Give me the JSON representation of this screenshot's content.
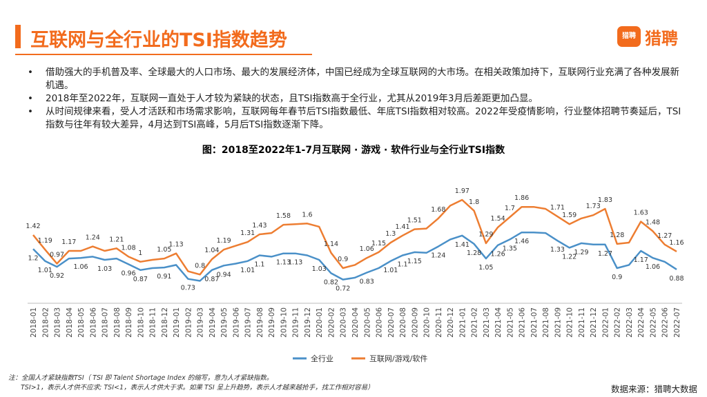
{
  "header": {
    "title": "互联网与全行业的TSI指数趋势",
    "logo_text": "猎聘"
  },
  "bullets": [
    "借助强大的手机普及率、全球最大的人口市场、最大的发展经济体，中国已经成为全球互联网的大市场。在相关政策加持下，互联网行业充满了各种发展新机遇。",
    "2018年至2022年，互联网一直处于人才较为紧缺的状态，且TSI指数高于全行业，尤其从2019年3月后差距更加凸显。",
    "从时间规律来看，受人才活跃和市场需求影响，互联网每年春节后TSI指数最低、年底TSI指数相对较高。2022年受疫情影响，行业整体招聘节奏延后，TSI指数与往年有较大差异，4月达到TSI高峰，5月后TSI指数逐渐下降。"
  ],
  "chart_data": {
    "type": "line",
    "title": "图：2018至2022年1-7月互联网 · 游戏 · 软件行业与全行业TSI指数",
    "categories": [
      "2018-01",
      "2018-02",
      "2018-03",
      "2018-04",
      "2018-05",
      "2018-06",
      "2018-07",
      "2018-08",
      "2018-09",
      "2018-10",
      "2018-11",
      "2018-12",
      "2019-01",
      "2019-02",
      "2019-03",
      "2019-04",
      "2019-05",
      "2019-06",
      "2019-07",
      "2019-08",
      "2019-09",
      "2019-10",
      "2019-11",
      "2019-12",
      "2020-01",
      "2020-02",
      "2020-03",
      "2020-04",
      "2020-05",
      "2020-06",
      "2020-07",
      "2020-08",
      "2020-09",
      "2020-10",
      "2020-11",
      "2020-12",
      "2021-01",
      "2021-02",
      "2021-03",
      "2021-04",
      "2021-05",
      "2021-06",
      "2021-07",
      "2021-08",
      "2021-09",
      "2021-10",
      "2021-11",
      "2021-12",
      "2022-01",
      "2022-02",
      "2022-03",
      "2022-04",
      "2022-05",
      "2022-06",
      "2022-07"
    ],
    "ylim": [
      0.5,
      2.1
    ],
    "series": [
      {
        "name": "全行业",
        "color": "#4a90c8",
        "values": [
          1.2,
          1.01,
          0.92,
          1.05,
          1.06,
          1.08,
          1.03,
          1.05,
          0.96,
          0.87,
          0.9,
          0.91,
          0.95,
          0.73,
          0.7,
          0.87,
          0.94,
          0.97,
          1.01,
          1.1,
          1.08,
          1.13,
          1.13,
          1.1,
          1.03,
          0.82,
          0.72,
          0.75,
          0.83,
          0.9,
          1.01,
          1.1,
          1.15,
          1.14,
          1.24,
          1.35,
          1.41,
          1.28,
          1.05,
          1.26,
          1.35,
          1.46,
          1.46,
          1.45,
          1.33,
          1.22,
          1.29,
          1.27,
          1.27,
          0.9,
          0.95,
          1.17,
          1.06,
          1,
          0.88
        ],
        "value_labels": [
          "1.2",
          "1.01",
          "0.92",
          null,
          "1.06",
          null,
          "1.03",
          null,
          "0.96",
          "0.87",
          null,
          "0.91",
          null,
          "0.73",
          null,
          "0.87",
          "0.94",
          null,
          "1.01",
          "1.1",
          null,
          "1.13",
          "1.13",
          null,
          "1.03",
          "0.82",
          "0.72",
          null,
          "0.83",
          null,
          "1.01",
          "1.1",
          "1.15",
          null,
          "1.24",
          null,
          "1.41",
          "1.28",
          "1.05",
          "1.26",
          "1.35",
          "1.46",
          null,
          null,
          "1.33",
          "1.22",
          "1.29",
          null,
          "1.27",
          "0.9",
          null,
          "1.17",
          "1.06",
          null,
          "0.88"
        ]
      },
      {
        "name": "互联网/游戏/软件",
        "color": "#ed7d31",
        "values": [
          1.42,
          1.19,
          0.97,
          1.17,
          1.17,
          1.24,
          1.17,
          1.21,
          1.08,
          1,
          1.03,
          1.05,
          1.13,
          0.85,
          0.8,
          1.04,
          1.19,
          1.25,
          1.31,
          1.43,
          1.45,
          1.58,
          1.59,
          1.6,
          1.55,
          1.14,
          0.9,
          0.95,
          1.06,
          1.15,
          1.3,
          1.41,
          1.51,
          1.52,
          1.68,
          1.88,
          1.97,
          1.8,
          1.29,
          1.54,
          1.7,
          1.86,
          1.86,
          1.83,
          1.71,
          1.59,
          1.68,
          1.73,
          1.83,
          1.28,
          1.3,
          1.63,
          1.48,
          1.27,
          1.16
        ],
        "value_labels": [
          "1.42",
          "1.19",
          "0.97",
          "1.17",
          null,
          "1.24",
          null,
          "1.21",
          "1.08",
          "1",
          null,
          "1.05",
          "1.13",
          null,
          "0.8",
          "1.04",
          "1.19",
          null,
          "1.31",
          "1.43",
          null,
          "1.58",
          null,
          "1.6",
          null,
          "1.14",
          "0.9",
          null,
          "1.06",
          "1.15",
          "1.3",
          "1.41",
          "1.51",
          null,
          "1.68",
          null,
          "1.97",
          "1.8",
          "1.29",
          "1.54",
          "1.7",
          "1.86",
          null,
          null,
          "1.71",
          "1.59",
          null,
          "1.73",
          "1.83",
          "1.28",
          null,
          "1.63",
          "1.48",
          "1.27",
          "1.16"
        ]
      }
    ]
  },
  "notes": [
    "注：全国人才紧缺指数TSI（ TSI 即 Talent Shortage Index 的缩写，意为人才紧缺指数。",
    "TSI>1，表示人才供不应求; TSI<1，表示人才供大于求。如果 TSI 呈上升趋势，表示人才越来越抢手，找工作相对容易）"
  ],
  "source": "数据来源：猎聘大数据"
}
